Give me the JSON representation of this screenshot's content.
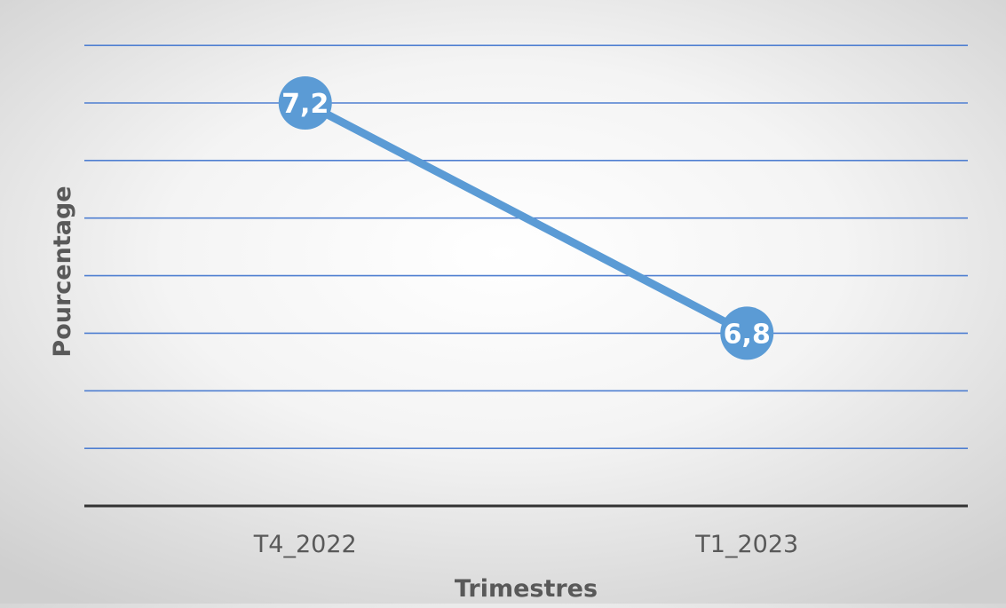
{
  "chart_data": {
    "type": "line",
    "categories": [
      "T4_2022",
      "T1_2023"
    ],
    "series": [
      {
        "values": [
          7.2,
          6.8
        ]
      }
    ],
    "data_labels": [
      "7,2",
      "6,8"
    ],
    "xlabel": "Trimestres",
    "ylabel": "Pourcentage",
    "ylim": [
      6.5,
      7.2
    ],
    "y_gridline_step": 0.1,
    "y_tick_labels_shown": false,
    "grid": true,
    "legend": "none",
    "colors": {
      "line": "#5b9bd5",
      "marker": "#5b9bd5",
      "gridline": "#4f7fd1",
      "axis": "#333333",
      "label_text": "#ffffff",
      "axis_text": "#595959"
    }
  }
}
